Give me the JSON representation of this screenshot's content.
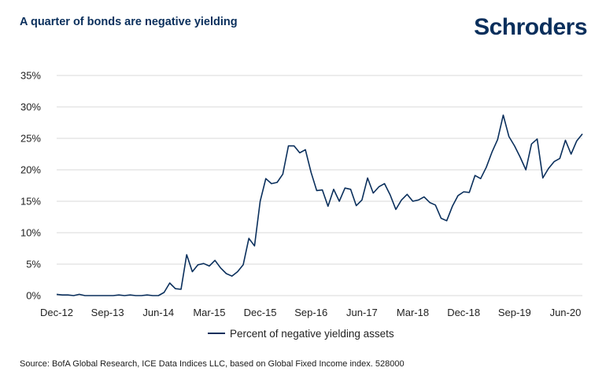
{
  "header": {
    "title": "A quarter of bonds are negative yielding",
    "logo_text": "Schroders"
  },
  "footer": {
    "source": "Source: BofA Global Research, ICE Data Indices LLC, based on Global Fixed Income index. 528000"
  },
  "colors": {
    "series": "#0a2f5c",
    "grid": "#d9d9d9",
    "brand": "#0a2f5c"
  },
  "chart_data": {
    "type": "line",
    "title": "",
    "xlabel": "",
    "ylabel": "",
    "y_unit": "%",
    "ylim": [
      0,
      35
    ],
    "y_ticks": [
      "0%",
      "5%",
      "10%",
      "15%",
      "20%",
      "25%",
      "30%",
      "35%"
    ],
    "x_tick_labels": [
      "Dec-12",
      "Sep-13",
      "Jun-14",
      "Mar-15",
      "Dec-15",
      "Sep-16",
      "Jun-17",
      "Mar-18",
      "Dec-18",
      "Sep-19",
      "Jun-20"
    ],
    "grid": "horizontal",
    "legend_position": "bottom",
    "series": [
      {
        "name": "Percent of negative yielding assets",
        "x": [
          "2012-12",
          "2013-01",
          "2013-02",
          "2013-03",
          "2013-04",
          "2013-05",
          "2013-06",
          "2013-07",
          "2013-08",
          "2013-09",
          "2013-10",
          "2013-11",
          "2013-12",
          "2014-01",
          "2014-02",
          "2014-03",
          "2014-04",
          "2014-05",
          "2014-06",
          "2014-07",
          "2014-08",
          "2014-09",
          "2014-10",
          "2014-11",
          "2014-12",
          "2015-01",
          "2015-02",
          "2015-03",
          "2015-04",
          "2015-05",
          "2015-06",
          "2015-07",
          "2015-08",
          "2015-09",
          "2015-10",
          "2015-11",
          "2015-12",
          "2016-01",
          "2016-02",
          "2016-03",
          "2016-04",
          "2016-05",
          "2016-06",
          "2016-07",
          "2016-08",
          "2016-09",
          "2016-10",
          "2016-11",
          "2016-12",
          "2017-01",
          "2017-02",
          "2017-03",
          "2017-04",
          "2017-05",
          "2017-06",
          "2017-07",
          "2017-08",
          "2017-09",
          "2017-10",
          "2017-11",
          "2017-12",
          "2018-01",
          "2018-02",
          "2018-03",
          "2018-04",
          "2018-05",
          "2018-06",
          "2018-07",
          "2018-08",
          "2018-09",
          "2018-10",
          "2018-11",
          "2018-12",
          "2019-01",
          "2019-02",
          "2019-03",
          "2019-04",
          "2019-05",
          "2019-06",
          "2019-07",
          "2019-08",
          "2019-09",
          "2019-10",
          "2019-11",
          "2019-12",
          "2020-01",
          "2020-02",
          "2020-03",
          "2020-04",
          "2020-05",
          "2020-06",
          "2020-07",
          "2020-08",
          "2020-09"
        ],
        "values": [
          0.2,
          0.1,
          0.1,
          0.0,
          0.2,
          0.0,
          0.0,
          0.0,
          0.0,
          0.0,
          0.0,
          0.1,
          0.0,
          0.1,
          0.0,
          0.0,
          0.1,
          0.0,
          0.0,
          0.5,
          2.0,
          1.1,
          1.0,
          6.5,
          3.8,
          4.9,
          5.1,
          4.7,
          5.6,
          4.4,
          3.5,
          3.1,
          3.8,
          4.9,
          9.1,
          7.9,
          15.0,
          18.6,
          17.8,
          18.0,
          19.3,
          23.8,
          23.8,
          22.7,
          23.2,
          19.6,
          16.7,
          16.8,
          14.2,
          16.9,
          15.0,
          17.1,
          16.9,
          14.3,
          15.2,
          18.7,
          16.3,
          17.3,
          17.8,
          16.0,
          13.7,
          15.2,
          16.1,
          15.0,
          15.2,
          15.7,
          14.8,
          14.4,
          12.3,
          11.9,
          14.2,
          15.9,
          16.5,
          16.4,
          19.1,
          18.6,
          20.4,
          22.8,
          24.8,
          28.7,
          25.3,
          23.8,
          22.0,
          20.0,
          24.1,
          24.9,
          18.7,
          20.2,
          21.3,
          21.8,
          24.7,
          22.5,
          24.6,
          25.7
        ]
      }
    ]
  }
}
